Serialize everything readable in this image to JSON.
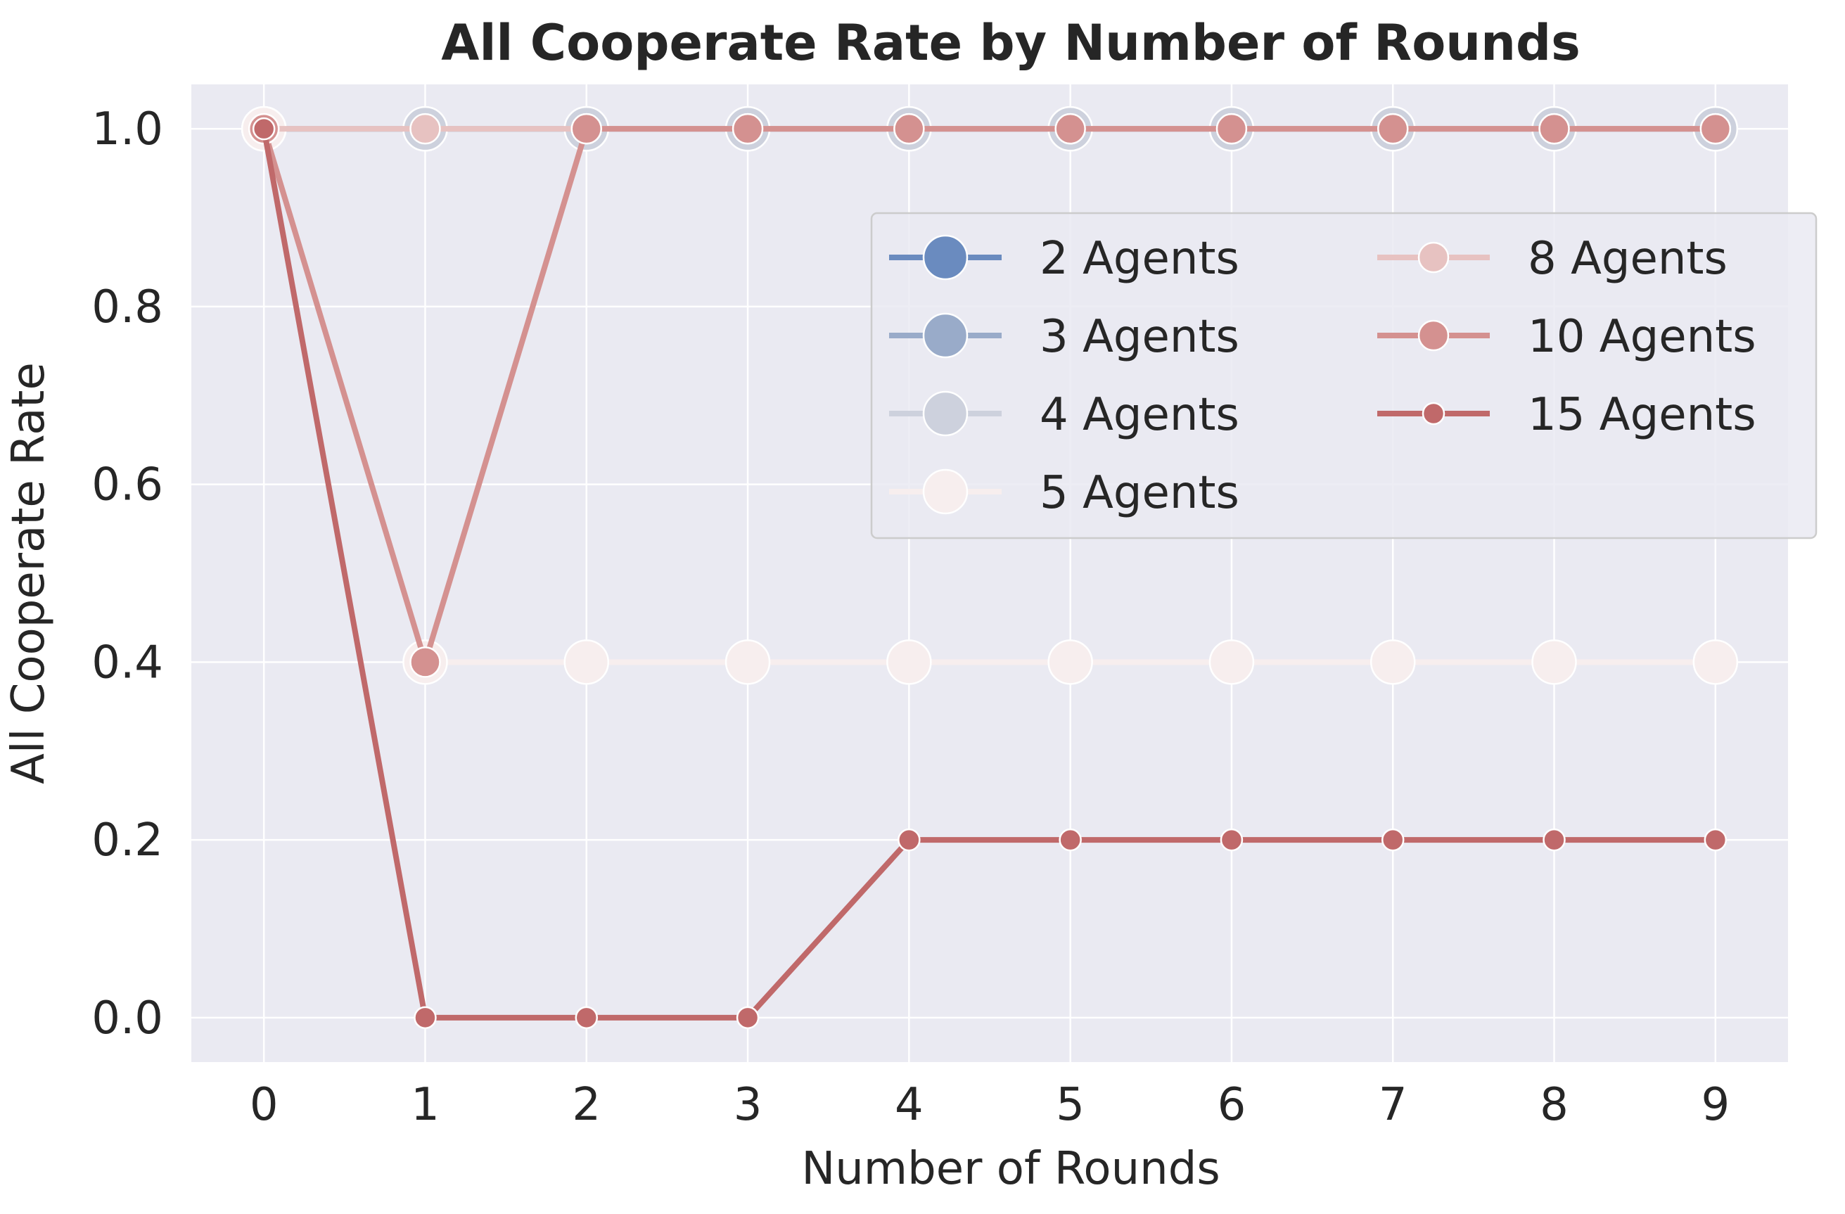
{
  "chart_data": {
    "type": "line",
    "title": "All Cooperate Rate by Number of Rounds",
    "xlabel": "Number of Rounds",
    "ylabel": "All Cooperate Rate",
    "x": [
      0,
      1,
      2,
      3,
      4,
      5,
      6,
      7,
      8,
      9
    ],
    "x_tick_labels": [
      "0",
      "1",
      "2",
      "3",
      "4",
      "5",
      "6",
      "7",
      "8",
      "9"
    ],
    "y_ticks": [
      0.0,
      0.2,
      0.4,
      0.6,
      0.8,
      1.0
    ],
    "y_tick_labels": [
      "0.0",
      "0.2",
      "0.4",
      "0.6",
      "0.8",
      "1.0"
    ],
    "xlim": [
      -0.45,
      9.45
    ],
    "ylim": [
      -0.05,
      1.05
    ],
    "grid": true,
    "background": "#eaeaf2",
    "legend_position": "upper-right",
    "legend_columns": 2,
    "series": [
      {
        "name": "2 Agents",
        "color": "#6a8bbf",
        "marker": "large-circle",
        "values": [
          1,
          1,
          1,
          1,
          1,
          1,
          1,
          1,
          1,
          1
        ]
      },
      {
        "name": "3 Agents",
        "color": "#99abc9",
        "marker": "large-circle",
        "values": [
          1,
          1,
          1,
          1,
          1,
          1,
          1,
          1,
          1,
          1
        ]
      },
      {
        "name": "4 Agents",
        "color": "#cdd1dd",
        "marker": "large-circle",
        "values": [
          1,
          1,
          1,
          1,
          1,
          1,
          1,
          1,
          1,
          1
        ]
      },
      {
        "name": "5 Agents",
        "color": "#f7eeee",
        "marker": "large-circle",
        "values": [
          1,
          0.4,
          0.4,
          0.4,
          0.4,
          0.4,
          0.4,
          0.4,
          0.4,
          0.4
        ]
      },
      {
        "name": "8 Agents",
        "color": "#e7c2c1",
        "marker": "medium-circle",
        "values": [
          1,
          1,
          1,
          1,
          1,
          1,
          1,
          1,
          1,
          1
        ]
      },
      {
        "name": "10 Agents",
        "color": "#d49190",
        "marker": "medium-circle",
        "values": [
          1,
          0.4,
          1,
          1,
          1,
          1,
          1,
          1,
          1,
          1
        ]
      },
      {
        "name": "15 Agents",
        "color": "#c0696a",
        "marker": "small-circle",
        "values": [
          1,
          0,
          0,
          0,
          0.2,
          0.2,
          0.2,
          0.2,
          0.2,
          0.2
        ]
      }
    ]
  }
}
